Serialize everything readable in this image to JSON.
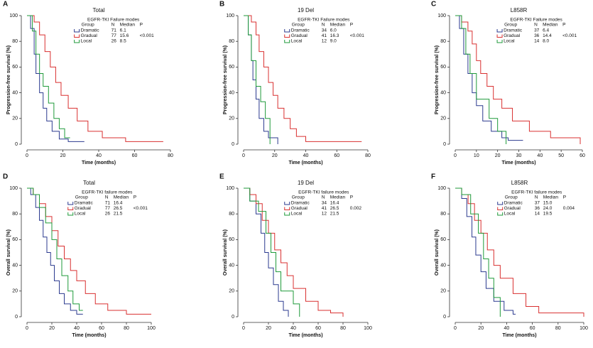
{
  "chart_data": [
    {
      "type": "line",
      "panel": "A",
      "title": "Total",
      "xlabel": "Time (months)",
      "ylabel": "Progression-free survival (%)",
      "xlim": [
        0,
        80
      ],
      "ylim": [
        0,
        100
      ],
      "xticks": [
        0,
        20,
        40,
        60,
        80
      ],
      "yticks": [
        0,
        20,
        40,
        60,
        80,
        100
      ],
      "legend_title": "EGFR-TKI Failure modes",
      "columns": [
        "Group",
        "N",
        "Median",
        "P"
      ],
      "p_value": "<0.001",
      "series": [
        {
          "name": "Dramatic",
          "color": "#2b3a8f",
          "n": 71,
          "median": "6.1",
          "x": [
            0,
            2,
            2,
            4,
            4,
            5,
            5,
            7,
            7,
            9,
            9,
            11,
            11,
            14,
            14,
            18,
            18,
            23,
            23,
            32
          ],
          "values": [
            100,
            100,
            90,
            90,
            70,
            70,
            55,
            55,
            40,
            40,
            28,
            28,
            18,
            18,
            10,
            10,
            4,
            4,
            2,
            2
          ]
        },
        {
          "name": "Gradual",
          "color": "#d93030",
          "n": 77,
          "median": "15.6",
          "x": [
            0,
            4,
            4,
            7,
            7,
            10,
            10,
            13,
            13,
            16,
            16,
            19,
            19,
            23,
            23,
            28,
            28,
            34,
            34,
            42,
            42,
            55,
            55,
            76
          ],
          "values": [
            100,
            100,
            95,
            95,
            85,
            85,
            72,
            72,
            60,
            60,
            48,
            48,
            38,
            38,
            28,
            28,
            18,
            18,
            10,
            10,
            5,
            5,
            2,
            2
          ]
        },
        {
          "name": "Local",
          "color": "#1f9a3a",
          "n": 26,
          "median": "8.5",
          "x": [
            0,
            3,
            3,
            5,
            5,
            7,
            7,
            9,
            9,
            12,
            12,
            15,
            15,
            18,
            18,
            21,
            21,
            24
          ],
          "values": [
            100,
            100,
            88,
            88,
            70,
            70,
            55,
            55,
            45,
            45,
            32,
            32,
            20,
            20,
            12,
            12,
            5,
            5
          ]
        }
      ]
    },
    {
      "type": "line",
      "panel": "B",
      "title": "19 Del",
      "xlabel": "Time (months)",
      "ylabel": "Progression-free survival (%)",
      "xlim": [
        0,
        80
      ],
      "ylim": [
        0,
        100
      ],
      "xticks": [
        0,
        20,
        40,
        60,
        80
      ],
      "yticks": [
        0,
        20,
        40,
        60,
        80,
        100
      ],
      "legend_title": "EGFR-TKI Failure modes",
      "columns": [
        "Group",
        "N",
        "Median",
        "P"
      ],
      "p_value": "<0.001",
      "series": [
        {
          "name": "Dramatic",
          "color": "#2b3a8f",
          "n": 34,
          "median": "6.0",
          "x": [
            0,
            3,
            3,
            5,
            5,
            6,
            6,
            8,
            8,
            10,
            10,
            13,
            13,
            16,
            16,
            22,
            22
          ],
          "values": [
            100,
            100,
            85,
            85,
            65,
            65,
            50,
            50,
            35,
            35,
            20,
            20,
            10,
            10,
            5,
            5,
            0
          ]
        },
        {
          "name": "Gradual",
          "color": "#d93030",
          "n": 41,
          "median": "16.3",
          "x": [
            0,
            5,
            5,
            8,
            8,
            10,
            10,
            13,
            13,
            16,
            16,
            19,
            19,
            22,
            22,
            26,
            26,
            30,
            30,
            34,
            34,
            40,
            40,
            76
          ],
          "values": [
            100,
            100,
            95,
            95,
            85,
            85,
            72,
            72,
            60,
            60,
            48,
            48,
            38,
            38,
            28,
            28,
            20,
            20,
            12,
            12,
            6,
            6,
            2,
            2
          ]
        },
        {
          "name": "Local",
          "color": "#1f9a3a",
          "n": 12,
          "median": "9.0",
          "x": [
            0,
            3,
            3,
            5,
            5,
            8,
            8,
            11,
            11,
            14,
            14,
            17,
            17
          ],
          "values": [
            100,
            100,
            85,
            85,
            65,
            65,
            45,
            45,
            33,
            33,
            20,
            20,
            0
          ]
        }
      ]
    },
    {
      "type": "line",
      "panel": "C",
      "title": "L858R",
      "xlabel": "Time (months)",
      "ylabel": "Progression-free survival (%)",
      "xlim": [
        0,
        60
      ],
      "ylim": [
        0,
        100
      ],
      "xticks": [
        0,
        10,
        20,
        30,
        40,
        50,
        60
      ],
      "yticks": [
        0,
        20,
        40,
        60,
        80,
        100
      ],
      "legend_title": "EGFR-TKI Failure modes",
      "columns": [
        "Group",
        "N",
        "Median",
        "P"
      ],
      "p_value": "<0.001",
      "series": [
        {
          "name": "Dramatic",
          "color": "#2b3a8f",
          "n": 37,
          "median": "6.4",
          "x": [
            0,
            2,
            2,
            4,
            4,
            6,
            6,
            8,
            8,
            10,
            10,
            13,
            13,
            17,
            17,
            22,
            22,
            25,
            25,
            32
          ],
          "values": [
            100,
            100,
            90,
            90,
            70,
            70,
            55,
            55,
            40,
            40,
            30,
            30,
            18,
            18,
            10,
            10,
            5,
            5,
            3,
            3
          ]
        },
        {
          "name": "Gradual",
          "color": "#d93030",
          "n": 36,
          "median": "14.4",
          "x": [
            0,
            3,
            3,
            6,
            6,
            8,
            8,
            10,
            10,
            12,
            12,
            15,
            15,
            18,
            18,
            22,
            22,
            27,
            27,
            35,
            35,
            45,
            45,
            59,
            59
          ],
          "values": [
            100,
            100,
            95,
            95,
            88,
            88,
            78,
            78,
            65,
            65,
            55,
            55,
            45,
            45,
            35,
            35,
            28,
            28,
            18,
            18,
            10,
            10,
            5,
            5,
            0
          ]
        },
        {
          "name": "Local",
          "color": "#1f9a3a",
          "n": 14,
          "median": "8.0",
          "x": [
            0,
            3,
            3,
            5,
            5,
            7,
            7,
            10,
            10,
            16,
            16,
            20,
            20,
            24,
            24
          ],
          "values": [
            100,
            100,
            90,
            90,
            70,
            70,
            55,
            55,
            35,
            35,
            20,
            20,
            10,
            10,
            0
          ]
        }
      ]
    },
    {
      "type": "line",
      "panel": "D",
      "title": "Total",
      "xlabel": "Time (months)",
      "ylabel": "Overall survival (%)",
      "xlim": [
        0,
        100
      ],
      "ylim": [
        0,
        100
      ],
      "xticks": [
        0,
        20,
        40,
        60,
        80,
        100
      ],
      "yticks": [
        0,
        20,
        40,
        60,
        80,
        100
      ],
      "legend_title": "EGFR-TKI failure modes",
      "columns": [
        "Group",
        "N",
        "Median",
        "P"
      ],
      "p_value": "<0.001",
      "series": [
        {
          "name": "Dramatic",
          "color": "#2b3a8f",
          "n": 71,
          "median": "16.4",
          "x": [
            0,
            3,
            3,
            7,
            7,
            10,
            10,
            13,
            13,
            16,
            16,
            19,
            19,
            22,
            22,
            26,
            26,
            30,
            30,
            35,
            35,
            40,
            40,
            45
          ],
          "values": [
            100,
            100,
            95,
            95,
            85,
            85,
            75,
            75,
            62,
            62,
            50,
            50,
            40,
            40,
            28,
            28,
            18,
            18,
            10,
            10,
            5,
            5,
            2,
            2
          ]
        },
        {
          "name": "Gradual",
          "color": "#d93030",
          "n": 77,
          "median": "26.5",
          "x": [
            0,
            5,
            5,
            10,
            10,
            15,
            15,
            20,
            20,
            25,
            25,
            30,
            30,
            35,
            35,
            40,
            40,
            47,
            47,
            55,
            55,
            65,
            65,
            80,
            80,
            100
          ],
          "values": [
            100,
            100,
            95,
            95,
            88,
            88,
            78,
            78,
            67,
            67,
            55,
            55,
            45,
            45,
            36,
            36,
            28,
            28,
            18,
            18,
            10,
            10,
            5,
            5,
            2,
            2
          ]
        },
        {
          "name": "Local",
          "color": "#1f9a3a",
          "n": 26,
          "median": "21.5",
          "x": [
            0,
            5,
            5,
            10,
            10,
            15,
            15,
            20,
            20,
            24,
            24,
            28,
            28,
            33,
            33,
            37,
            37,
            42,
            42,
            45
          ],
          "values": [
            100,
            100,
            95,
            95,
            85,
            85,
            73,
            73,
            60,
            60,
            45,
            45,
            32,
            32,
            20,
            20,
            10,
            10,
            5,
            5
          ]
        }
      ]
    },
    {
      "type": "line",
      "panel": "E",
      "title": "19 Del",
      "xlabel": "Time (months)",
      "ylabel": "Overall survival (%)",
      "xlim": [
        0,
        100
      ],
      "ylim": [
        0,
        100
      ],
      "xticks": [
        0,
        20,
        40,
        60,
        80,
        100
      ],
      "yticks": [
        0,
        20,
        40,
        60,
        80,
        100
      ],
      "legend_title": "EGFR-TKI failure modes",
      "columns": [
        "Group",
        "N",
        "Median",
        "P"
      ],
      "p_value": "0.002",
      "series": [
        {
          "name": "Dramatic",
          "color": "#2b3a8f",
          "n": 34,
          "median": "16.4",
          "x": [
            0,
            5,
            5,
            10,
            10,
            14,
            14,
            17,
            17,
            20,
            20,
            24,
            24,
            28,
            28,
            32,
            32,
            36,
            36
          ],
          "values": [
            100,
            100,
            90,
            90,
            80,
            80,
            65,
            65,
            50,
            50,
            38,
            38,
            25,
            25,
            12,
            12,
            5,
            5,
            0
          ]
        },
        {
          "name": "Gradual",
          "color": "#d93030",
          "n": 41,
          "median": "26.5",
          "x": [
            0,
            5,
            5,
            10,
            10,
            15,
            15,
            20,
            20,
            25,
            25,
            30,
            30,
            35,
            35,
            40,
            40,
            50,
            50,
            60,
            60,
            70,
            70,
            80,
            80
          ],
          "values": [
            100,
            100,
            95,
            95,
            88,
            88,
            75,
            75,
            65,
            65,
            52,
            52,
            42,
            42,
            32,
            32,
            22,
            22,
            12,
            12,
            5,
            5,
            3,
            3,
            0
          ]
        },
        {
          "name": "Local",
          "color": "#1f9a3a",
          "n": 12,
          "median": "21.5",
          "x": [
            0,
            5,
            5,
            12,
            12,
            18,
            18,
            22,
            22,
            26,
            26,
            30,
            30,
            40,
            40,
            45,
            45
          ],
          "values": [
            100,
            100,
            90,
            90,
            82,
            82,
            65,
            65,
            50,
            50,
            35,
            35,
            20,
            20,
            10,
            10,
            0
          ]
        }
      ]
    },
    {
      "type": "line",
      "panel": "F",
      "title": "L858R",
      "xlabel": "Time (months)",
      "ylabel": "Overall survival (%)",
      "xlim": [
        0,
        100
      ],
      "ylim": [
        0,
        100
      ],
      "xticks": [
        0,
        20,
        40,
        60,
        80,
        100
      ],
      "yticks": [
        0,
        20,
        40,
        60,
        80,
        100
      ],
      "legend_title": "EGFR-TKI failure modes",
      "columns": [
        "Group",
        "N",
        "Median",
        "P"
      ],
      "p_value": "0.004",
      "series": [
        {
          "name": "Dramatic",
          "color": "#2b3a8f",
          "n": 37,
          "median": "15.0",
          "x": [
            0,
            5,
            5,
            9,
            9,
            13,
            13,
            16,
            16,
            20,
            20,
            24,
            24,
            30,
            30,
            38,
            38,
            45,
            45,
            47
          ],
          "values": [
            100,
            100,
            92,
            92,
            78,
            78,
            62,
            62,
            48,
            48,
            35,
            35,
            22,
            22,
            12,
            12,
            5,
            5,
            2,
            2
          ]
        },
        {
          "name": "Gradual",
          "color": "#d93030",
          "n": 36,
          "median": "24.0",
          "x": [
            0,
            5,
            5,
            10,
            10,
            15,
            15,
            20,
            20,
            25,
            25,
            30,
            30,
            35,
            35,
            45,
            45,
            55,
            55,
            65,
            65,
            100,
            100
          ],
          "values": [
            100,
            100,
            95,
            95,
            88,
            88,
            75,
            75,
            65,
            65,
            52,
            52,
            40,
            40,
            30,
            30,
            18,
            18,
            8,
            8,
            3,
            3,
            0
          ]
        },
        {
          "name": "Local",
          "color": "#1f9a3a",
          "n": 14,
          "median": "19.5",
          "x": [
            0,
            5,
            5,
            12,
            12,
            18,
            18,
            22,
            22,
            26,
            26,
            30,
            30,
            35,
            35
          ],
          "values": [
            100,
            100,
            95,
            95,
            80,
            80,
            65,
            65,
            45,
            45,
            30,
            30,
            15,
            15,
            0
          ]
        }
      ]
    }
  ]
}
